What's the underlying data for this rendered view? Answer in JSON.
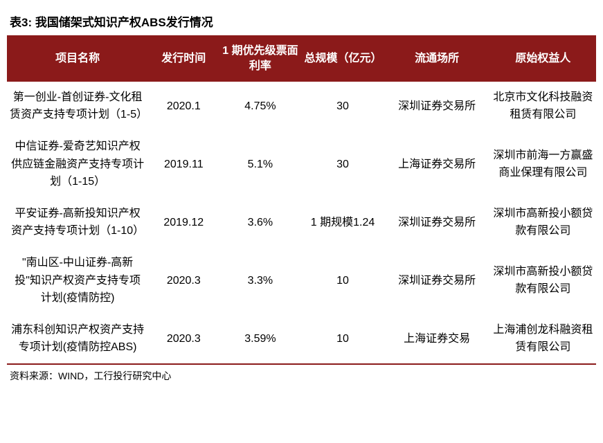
{
  "table": {
    "title": "表3:  我国储架式知识产权ABS发行情况",
    "columns": [
      "项目名称",
      "发行时间",
      "1 期优先级票面利率",
      "总规模（亿元）",
      "流通场所",
      "原始权益人"
    ],
    "rows": [
      {
        "name": "第一创业-首创证券-文化租赁资产支持专项计划（1-5）",
        "time": "2020.1",
        "rate": "4.75%",
        "scale": "30",
        "venue": "深圳证券交易所",
        "originator": "北京市文化科技融资租赁有限公司"
      },
      {
        "name": "中信证券-爱奇艺知识产权供应链金融资产支持专项计划（1-15）",
        "time": "2019.11",
        "rate": "5.1%",
        "scale": "30",
        "venue": "上海证券交易所",
        "originator": "深圳市前海一方赢盛商业保理有限公司"
      },
      {
        "name": "平安证券-高新投知识产权资产支持专项计划（1-10）",
        "time": "2019.12",
        "rate": "3.6%",
        "scale": "1 期规模1.24",
        "venue": "深圳证券交易所",
        "originator": "深圳市高新投小额贷款有限公司"
      },
      {
        "name": "\"南山区-中山证券-高新投\"知识产权资产支持专项计划(疫情防控)",
        "time": "2020.3",
        "rate": "3.3%",
        "scale": "10",
        "venue": "深圳证券交易所",
        "originator": "深圳市高新投小额贷款有限公司"
      },
      {
        "name": "浦东科创知识产权资产支持专项计划(疫情防控ABS)",
        "time": "2020.3",
        "rate": "3.59%",
        "scale": "10",
        "venue": "上海证券交易",
        "originator": "上海浦创龙科融资租赁有限公司"
      }
    ],
    "source": "资料来源：WIND，工行投行研究中心",
    "styling": {
      "header_bg": "#8b1a1a",
      "header_text_color": "#ffffff",
      "body_text_color": "#000000",
      "border_color": "#8b1a1a",
      "title_fontsize": 17,
      "header_fontsize": 16,
      "cell_fontsize": 16,
      "source_fontsize": 14
    }
  }
}
